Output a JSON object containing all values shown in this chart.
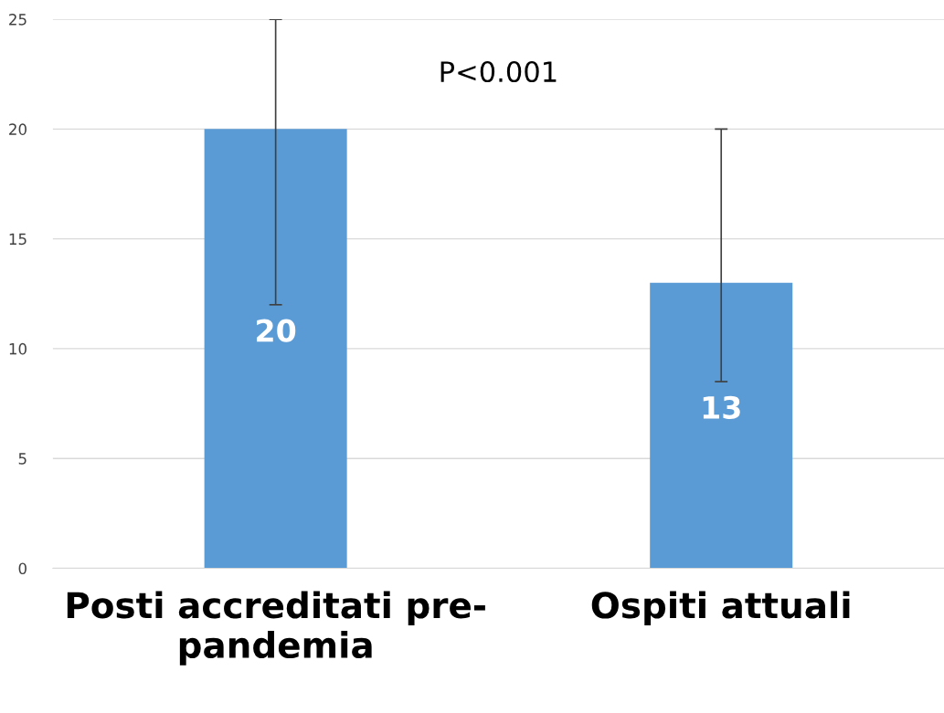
{
  "chart_data": {
    "type": "bar",
    "categories": [
      "Posti accreditati pre-\npandemia",
      "Ospiti attuali"
    ],
    "values": [
      20,
      13
    ],
    "color": "#5b9bd5",
    "errors": [
      [
        12,
        25
      ],
      [
        8.5,
        20
      ]
    ],
    "data_labels": true,
    "annotations": [
      "P<0.001"
    ],
    "ylim": [
      0,
      25
    ],
    "yticks": [
      0,
      5,
      10,
      15,
      20,
      25
    ],
    "grid": "y"
  }
}
